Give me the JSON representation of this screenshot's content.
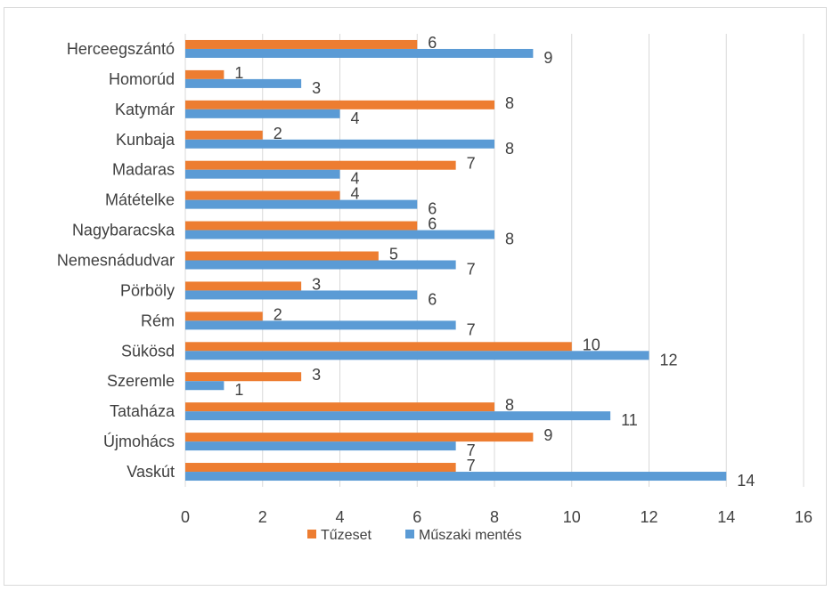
{
  "chart_data": {
    "type": "bar",
    "orientation": "horizontal",
    "categories": [
      "Herceegszántó",
      "Homorúd",
      "Katymár",
      "Kunbaja",
      "Madaras",
      "Mátételke",
      "Nagybaracska",
      "Nemesnádudvar",
      "Pörböly",
      "Rém",
      "Sükösd",
      "Szeremle",
      "Tataháza",
      "Újmohács",
      "Vaskút"
    ],
    "series": [
      {
        "name": "Tűzeset",
        "color": "#ED7D31",
        "values": [
          6,
          1,
          8,
          2,
          7,
          4,
          6,
          5,
          3,
          2,
          10,
          3,
          8,
          9,
          7
        ]
      },
      {
        "name": "Műszaki mentés",
        "color": "#5B9BD5",
        "values": [
          9,
          3,
          4,
          8,
          4,
          6,
          8,
          7,
          6,
          7,
          12,
          1,
          11,
          7,
          14
        ]
      }
    ],
    "xlim": [
      0,
      16
    ],
    "x_ticks": [
      "0",
      "2",
      "4",
      "6",
      "8",
      "10",
      "12",
      "14",
      "16"
    ],
    "grid": true,
    "legend_position": "bottom",
    "data_labels": true
  }
}
